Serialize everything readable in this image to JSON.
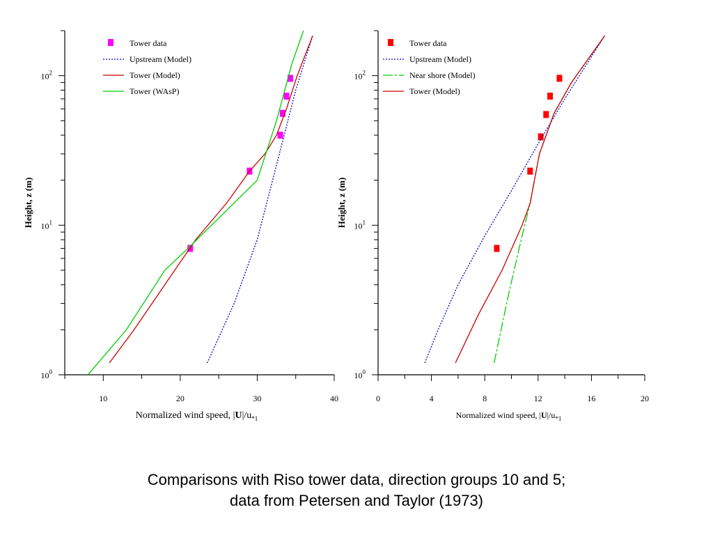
{
  "caption": {
    "line1": "Comparisons with Riso tower data, direction groups 10 and 5;",
    "line2": "data from Petersen and Taylor (1973)"
  },
  "chart_data": [
    {
      "type": "line",
      "id": "left",
      "xlabel_main": "Normalized wind speed, |",
      "xlabel_bold": "U",
      "xlabel_rest": "|/u",
      "xlabel_sub": "*1",
      "ylabel": "Height, z (m)",
      "xlim": [
        5,
        40
      ],
      "ylim": [
        1,
        200
      ],
      "yscale": "log",
      "xticks": [
        10,
        20,
        30,
        40
      ],
      "xminor": 5,
      "ytick_labels": [
        {
          "value": 1,
          "base": "10",
          "exp": "0"
        },
        {
          "value": 10,
          "base": "10",
          "exp": "1"
        },
        {
          "value": 100,
          "base": "10",
          "exp": "2"
        }
      ],
      "legend_position": "top-left",
      "series": [
        {
          "name": "Tower data",
          "kind": "marker",
          "color": "#ff00ff",
          "points": [
            [
              21.3,
              7
            ],
            [
              29,
              23
            ],
            [
              33,
              40
            ],
            [
              33.3,
              56
            ],
            [
              33.8,
              73
            ],
            [
              34.3,
              96
            ]
          ]
        },
        {
          "name": "Upstream (Model)",
          "kind": "line",
          "style": "dotted",
          "color": "#0000cc",
          "points": [
            [
              23.5,
              1.2
            ],
            [
              27,
              3
            ],
            [
              30,
              8
            ],
            [
              32,
              20
            ],
            [
              33.5,
              40
            ],
            [
              35,
              80
            ],
            [
              37.2,
              185
            ]
          ]
        },
        {
          "name": "Tower (Model)",
          "kind": "line",
          "style": "solid",
          "color": "#cc0000",
          "points": [
            [
              10.8,
              1.2
            ],
            [
              14,
              2
            ],
            [
              18,
              4
            ],
            [
              22,
              8
            ],
            [
              26,
              14
            ],
            [
              29,
              23
            ],
            [
              31,
              30
            ],
            [
              32.5,
              40
            ],
            [
              33.8,
              60
            ],
            [
              35.2,
              100
            ],
            [
              37.2,
              185
            ]
          ]
        },
        {
          "name": "Tower (WAsP)",
          "kind": "line",
          "style": "solid",
          "color": "#00cc00",
          "points": [
            [
              8,
              1
            ],
            [
              13,
              2
            ],
            [
              18,
              5
            ],
            [
              21,
              7
            ],
            [
              30,
              20
            ],
            [
              32.5,
              50
            ],
            [
              34.5,
              120
            ],
            [
              36,
              200
            ]
          ]
        }
      ]
    },
    {
      "type": "line",
      "id": "right",
      "xlabel_main": "Normalized wind speed, |",
      "xlabel_bold": "U",
      "xlabel_rest": "|/u",
      "xlabel_sub": "*1",
      "ylabel": "Height, z (m)",
      "xlim": [
        0,
        20
      ],
      "ylim": [
        1,
        200
      ],
      "yscale": "log",
      "xticks": [
        0,
        4,
        8,
        12,
        16,
        20
      ],
      "xminor": 2,
      "ytick_labels": [
        {
          "value": 1,
          "base": "10",
          "exp": "0"
        },
        {
          "value": 10,
          "base": "10",
          "exp": "1"
        },
        {
          "value": 100,
          "base": "10",
          "exp": "2"
        }
      ],
      "legend_position": "top-left",
      "series": [
        {
          "name": "Tower data",
          "kind": "marker",
          "color": "#ff0000",
          "points": [
            [
              8.9,
              7
            ],
            [
              11.4,
              23
            ],
            [
              12.2,
              39
            ],
            [
              12.6,
              55
            ],
            [
              12.9,
              73
            ],
            [
              13.6,
              96
            ]
          ]
        },
        {
          "name": "Upstream (Model)",
          "kind": "line",
          "style": "dotted",
          "color": "#0000cc",
          "points": [
            [
              3.5,
              1.2
            ],
            [
              4.5,
              2
            ],
            [
              6,
              4
            ],
            [
              8,
              8.5
            ],
            [
              10,
              17
            ],
            [
              12,
              35
            ],
            [
              14,
              70
            ],
            [
              17,
              185
            ]
          ]
        },
        {
          "name": "Near shore (Model)",
          "kind": "line",
          "style": "dashed",
          "color": "#00cc00",
          "points": [
            [
              8.7,
              1.2
            ],
            [
              9.8,
              3.5
            ],
            [
              10.8,
              8.5
            ],
            [
              11.4,
              14
            ],
            [
              12.1,
              30
            ],
            [
              13.2,
              56
            ],
            [
              14.5,
              90
            ],
            [
              17,
              185
            ]
          ]
        },
        {
          "name": "Tower (Model)",
          "kind": "line",
          "style": "solid",
          "color": "#cc0000",
          "points": [
            [
              5.8,
              1.2
            ],
            [
              7.5,
              2.5
            ],
            [
              9.3,
              5
            ],
            [
              10.8,
              10
            ],
            [
              11.4,
              14
            ],
            [
              12.1,
              30
            ],
            [
              13.2,
              56
            ],
            [
              14.5,
              90
            ],
            [
              17,
              185
            ]
          ]
        }
      ]
    }
  ]
}
